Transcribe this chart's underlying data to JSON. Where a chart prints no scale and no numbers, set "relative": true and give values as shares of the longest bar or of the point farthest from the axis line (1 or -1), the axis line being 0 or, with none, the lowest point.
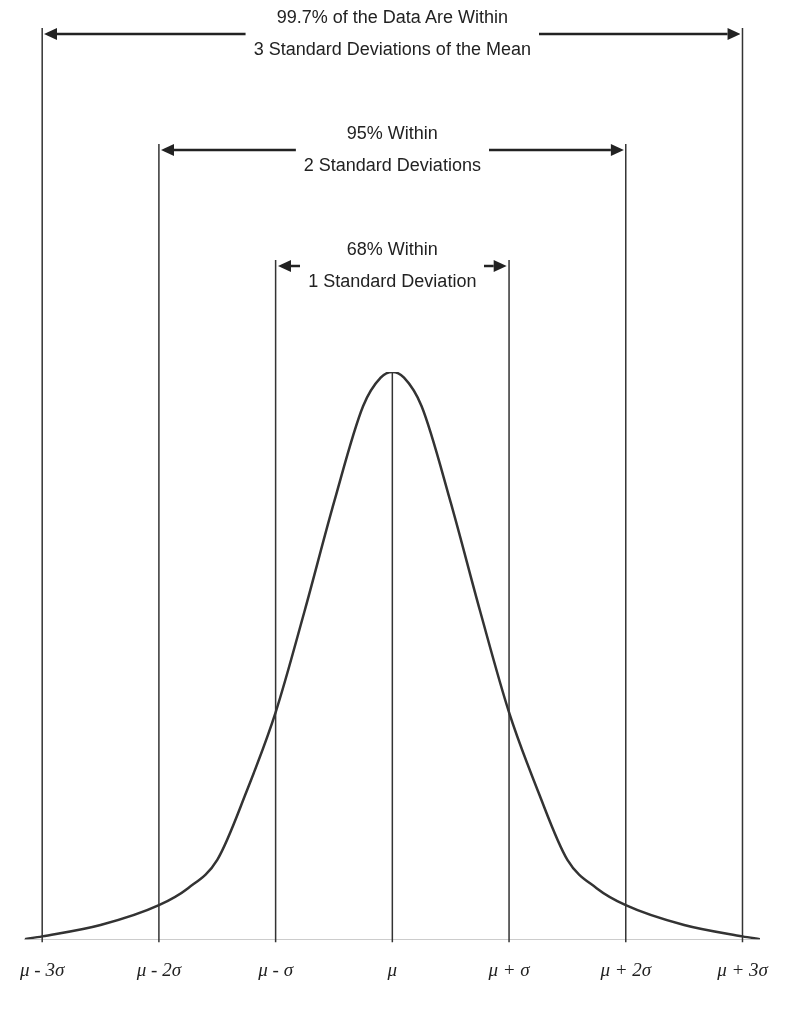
{
  "chart_data": {
    "type": "line",
    "relative": true,
    "annotations": [
      "99.7% of the Data Are Within\n3 Standard Deviations of the Mean",
      "95% Within\n2 Standard Deviations",
      "68% Within\n1 Standard Deviation"
    ],
    "xlim": [
      -3.15,
      3.15
    ],
    "xticks": [
      {
        "value": -3,
        "label": "μ - 3σ"
      },
      {
        "value": -2,
        "label": "μ - 2σ"
      },
      {
        "value": -1,
        "label": "μ - σ"
      },
      {
        "value": 0,
        "label": "μ"
      },
      {
        "value": 1,
        "label": "μ + σ"
      },
      {
        "value": 2,
        "label": "μ + 2σ"
      },
      {
        "value": 3,
        "label": "μ + 3σ"
      }
    ],
    "series": [
      {
        "color": "#333333",
        "x": [
          -3.15,
          -3,
          -2.5,
          -2,
          -1.75,
          -1.5,
          -1.25,
          -1,
          -0.75,
          -0.5,
          -0.25,
          -0.1,
          0,
          0.1,
          0.25,
          0.5,
          0.75,
          1,
          1.25,
          1.5,
          1.75,
          2,
          2.5,
          3,
          3.15
        ],
        "values": [
          0,
          0.005,
          0.025,
          0.06,
          0.09,
          0.14,
          0.26,
          0.4,
          0.58,
          0.77,
          0.94,
          0.99,
          1,
          0.99,
          0.94,
          0.77,
          0.58,
          0.4,
          0.26,
          0.14,
          0.09,
          0.06,
          0.025,
          0.005,
          0
        ]
      }
    ],
    "ref_lines": [
      {
        "axis": "x",
        "value": -3
      },
      {
        "axis": "x",
        "value": 3
      },
      {
        "axis": "x",
        "value": -2
      },
      {
        "axis": "x",
        "value": 2
      },
      {
        "axis": "x",
        "value": -1
      },
      {
        "axis": "x",
        "value": 1
      },
      {
        "axis": "x",
        "value": 0
      }
    ],
    "legend": false,
    "marker": "none",
    "line_style": "solid"
  }
}
